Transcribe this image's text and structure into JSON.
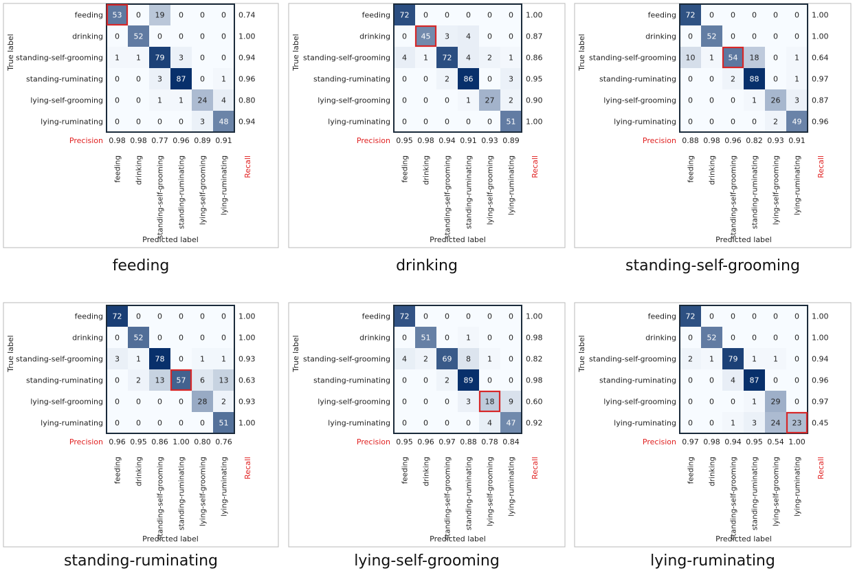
{
  "precision_label": "Precision",
  "recall_label": "Recall",
  "xlabel": "Predicted label",
  "ylabel": "True label",
  "classes": [
    "feeding",
    "drinking",
    "standing-self-grooming",
    "standing-ruminating",
    "lying-self-grooming",
    "lying-ruminating"
  ],
  "colormap": {
    "low": "#f7fbff",
    "high": "#08306b",
    "highlight": "#d62728",
    "label_red": "#e02020"
  },
  "chart_data": [
    {
      "type": "heatmap",
      "caption": "feeding",
      "highlight": [
        0,
        0
      ],
      "matrix": [
        [
          53,
          0,
          19,
          0,
          0,
          0
        ],
        [
          0,
          52,
          0,
          0,
          0,
          0
        ],
        [
          1,
          1,
          79,
          3,
          0,
          0
        ],
        [
          0,
          0,
          3,
          87,
          0,
          1
        ],
        [
          0,
          0,
          1,
          1,
          24,
          4
        ],
        [
          0,
          0,
          0,
          0,
          3,
          48
        ]
      ],
      "recall": [
        "0.74",
        "1.00",
        "0.94",
        "0.96",
        "0.80",
        "0.94"
      ],
      "precision": [
        "0.98",
        "0.98",
        "0.77",
        "0.96",
        "0.89",
        "0.91"
      ]
    },
    {
      "type": "heatmap",
      "caption": "drinking",
      "highlight": [
        1,
        1
      ],
      "matrix": [
        [
          72,
          0,
          0,
          0,
          0,
          0
        ],
        [
          0,
          45,
          3,
          4,
          0,
          0
        ],
        [
          4,
          1,
          72,
          4,
          2,
          1
        ],
        [
          0,
          0,
          2,
          86,
          0,
          3
        ],
        [
          0,
          0,
          0,
          1,
          27,
          2
        ],
        [
          0,
          0,
          0,
          0,
          0,
          51
        ]
      ],
      "recall": [
        "1.00",
        "0.87",
        "0.86",
        "0.95",
        "0.90",
        "1.00"
      ],
      "precision": [
        "0.95",
        "0.98",
        "0.94",
        "0.91",
        "0.93",
        "0.89"
      ]
    },
    {
      "type": "heatmap",
      "caption": "standing-self-grooming",
      "highlight": [
        2,
        2
      ],
      "matrix": [
        [
          72,
          0,
          0,
          0,
          0,
          0
        ],
        [
          0,
          52,
          0,
          0,
          0,
          0
        ],
        [
          10,
          1,
          54,
          18,
          0,
          1
        ],
        [
          0,
          0,
          2,
          88,
          0,
          1
        ],
        [
          0,
          0,
          0,
          1,
          26,
          3
        ],
        [
          0,
          0,
          0,
          0,
          2,
          49
        ]
      ],
      "recall": [
        "1.00",
        "1.00",
        "0.64",
        "0.97",
        "0.87",
        "0.96"
      ],
      "precision": [
        "0.88",
        "0.98",
        "0.96",
        "0.82",
        "0.93",
        "0.91"
      ]
    },
    {
      "type": "heatmap",
      "caption": "standing-ruminating",
      "highlight": [
        3,
        3
      ],
      "matrix": [
        [
          72,
          0,
          0,
          0,
          0,
          0
        ],
        [
          0,
          52,
          0,
          0,
          0,
          0
        ],
        [
          3,
          1,
          78,
          0,
          1,
          1
        ],
        [
          0,
          2,
          13,
          57,
          6,
          13
        ],
        [
          0,
          0,
          0,
          0,
          28,
          2
        ],
        [
          0,
          0,
          0,
          0,
          0,
          51
        ]
      ],
      "recall": [
        "1.00",
        "1.00",
        "0.93",
        "0.63",
        "0.93",
        "1.00"
      ],
      "precision": [
        "0.96",
        "0.95",
        "0.86",
        "1.00",
        "0.80",
        "0.76"
      ]
    },
    {
      "type": "heatmap",
      "caption": "lying-self-grooming",
      "highlight": [
        4,
        4
      ],
      "matrix": [
        [
          72,
          0,
          0,
          0,
          0,
          0
        ],
        [
          0,
          51,
          0,
          1,
          0,
          0
        ],
        [
          4,
          2,
          69,
          8,
          1,
          0
        ],
        [
          0,
          0,
          2,
          89,
          0,
          0
        ],
        [
          0,
          0,
          0,
          3,
          18,
          9
        ],
        [
          0,
          0,
          0,
          0,
          4,
          47
        ]
      ],
      "recall": [
        "1.00",
        "0.98",
        "0.82",
        "0.98",
        "0.60",
        "0.92"
      ],
      "precision": [
        "0.95",
        "0.96",
        "0.97",
        "0.88",
        "0.78",
        "0.84"
      ]
    },
    {
      "type": "heatmap",
      "caption": "lying-ruminating",
      "highlight": [
        5,
        5
      ],
      "matrix": [
        [
          72,
          0,
          0,
          0,
          0,
          0
        ],
        [
          0,
          52,
          0,
          0,
          0,
          0
        ],
        [
          2,
          1,
          79,
          1,
          1,
          0
        ],
        [
          0,
          0,
          4,
          87,
          0,
          0
        ],
        [
          0,
          0,
          0,
          1,
          29,
          0
        ],
        [
          0,
          0,
          1,
          3,
          24,
          23
        ]
      ],
      "recall": [
        "1.00",
        "1.00",
        "0.94",
        "0.96",
        "0.97",
        "0.45"
      ],
      "precision": [
        "0.97",
        "0.98",
        "0.94",
        "0.95",
        "0.54",
        "1.00"
      ]
    }
  ]
}
